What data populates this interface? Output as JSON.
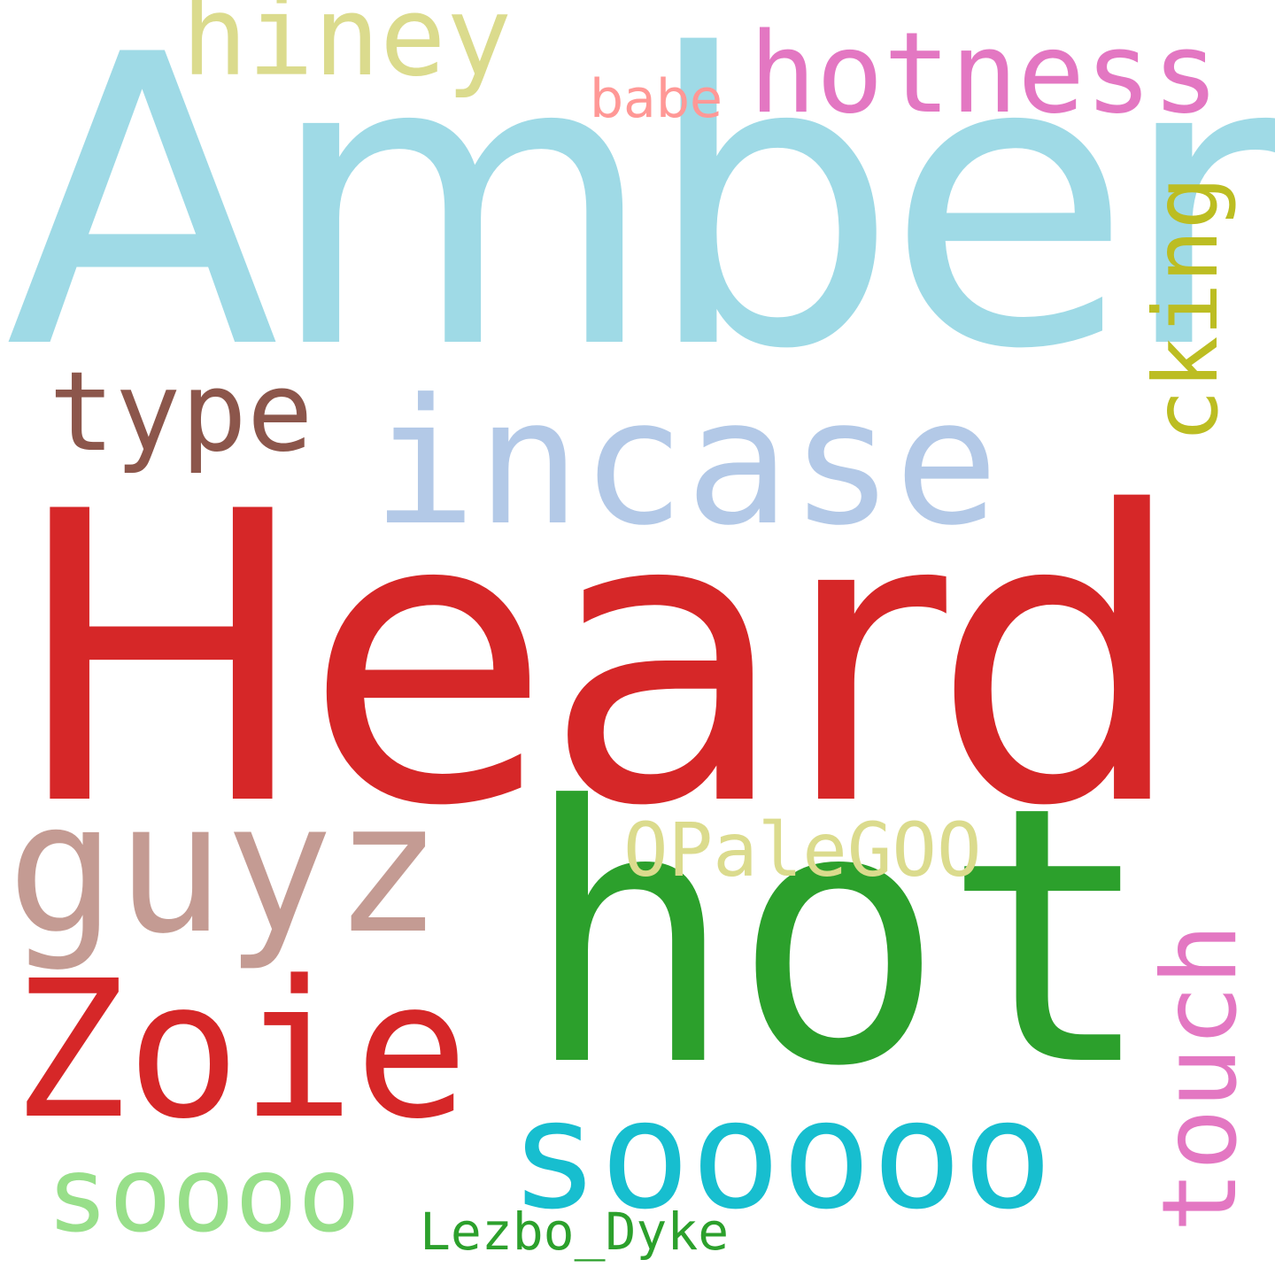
{
  "words": {
    "amber": "Amber",
    "heard": "Heard",
    "hot": "hot",
    "incase": "incase",
    "guyz": "guyz",
    "zoie": "Zoie",
    "sooooo": "sooooo",
    "soooo": "soooo",
    "hotness": "hotness",
    "hiney": "hiney",
    "type": "type",
    "babe": "babe",
    "opalegoo": "OPaleGOO",
    "lezbo": "Lezbo_Dyke",
    "cking": "cking",
    "touch": "touch"
  },
  "palette": {
    "background": "#ffffff",
    "light_blue": "#9fdae6",
    "red": "#d62728",
    "green": "#2ca02c",
    "pale_blue": "#b3c9e7",
    "rose_brown": "#c49b93",
    "cyan": "#17becf",
    "light_green": "#98df8a",
    "pink": "#e377c2",
    "khaki": "#dbdb8d",
    "brown": "#8c564b",
    "salmon": "#ff9896",
    "olive": "#bcbd22"
  }
}
